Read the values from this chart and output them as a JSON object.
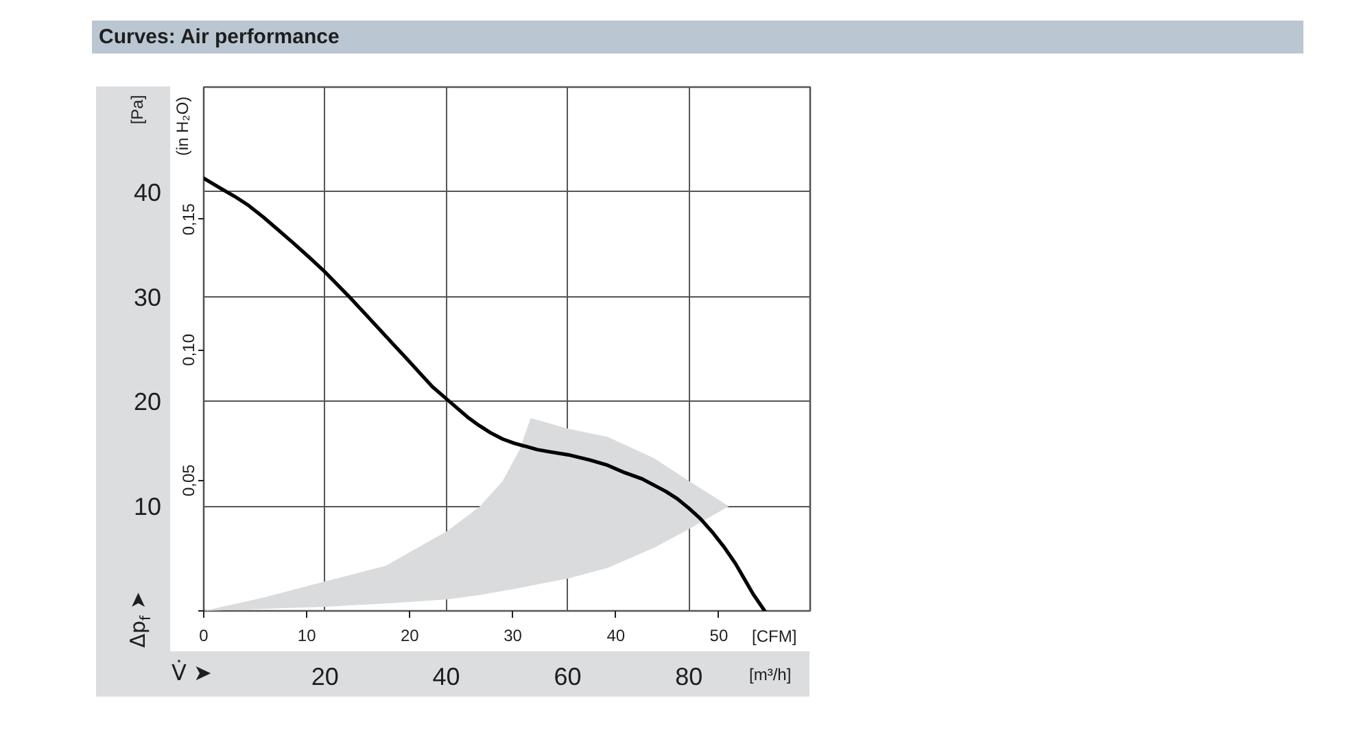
{
  "chart_data": {
    "type": "line",
    "title": "Curves: Air performance",
    "xlabel": "V̇ ➤",
    "ylabel": "Δp$_{f}$ ➤",
    "x2label": "[CFM]",
    "y2label": "(in H₂O)",
    "annotations": [
      "[Pa]",
      "[m³/h]"
    ],
    "xlim": [
      0,
      100
    ],
    "xticks": [
      20,
      40,
      60,
      80
    ],
    "ylim": [
      0,
      50
    ],
    "yticks": [
      10,
      20,
      30,
      40
    ],
    "x2lim": [
      0,
      58.86
    ],
    "x2ticks": [
      0,
      10,
      20,
      30,
      40,
      50
    ],
    "y2lim": [
      0,
      0.2007
    ],
    "y2ticks": [
      {
        "value": 0,
        "label": null
      },
      {
        "value": 0.05,
        "label": "0,05"
      },
      {
        "value": 0.1,
        "label": "0,10"
      },
      {
        "value": 0.15,
        "label": "0,15"
      }
    ],
    "grid": true,
    "series": [
      {
        "type": "area",
        "color": "#dadbdd",
        "x": [
          0,
          10,
          19.9,
          30.0,
          40.1,
          45.4,
          49.3,
          52.1,
          53.9,
          60.1,
          66.6,
          74.2,
          80.0,
          86.6
        ],
        "values": [
          null,
          null,
          null,
          null,
          null,
          null,
          null,
          null,
          null,
          null,
          null,
          null,
          null,
          null
        ],
        "lower": [
          0,
          0.2,
          0.4,
          0.7,
          1.1,
          1.5,
          1.9,
          2.2,
          2.4,
          3.1,
          4.1,
          6.0,
          7.8,
          10.0
        ],
        "upper": [
          0,
          1.3,
          2.8,
          4.3,
          7.6,
          9.9,
          12.4,
          15.4,
          18.4,
          17.4,
          16.6,
          14.6,
          12.4,
          10.0
        ]
      },
      {
        "color": "#000000",
        "x": [
          0,
          2.6,
          5.0,
          7.4,
          9.8,
          12.2,
          14.6,
          17.3,
          19.9,
          22.1,
          24.3,
          26.7,
          29.1,
          31.5,
          33.9,
          35.8,
          37.7,
          40.1,
          43.5,
          45.4,
          47.3,
          49.3,
          51.2,
          53.1,
          55.0,
          56.9,
          60.1,
          63.7,
          66.6,
          69.4,
          72.3,
          76.2,
          78.1,
          80.0,
          81.9,
          83.9,
          85.8,
          87.7,
          89.2,
          90.6,
          92.5
        ],
        "values": [
          41.3,
          40.4,
          39.6,
          38.7,
          37.6,
          36.4,
          35.2,
          33.8,
          32.4,
          31.1,
          29.8,
          28.3,
          26.8,
          25.3,
          23.8,
          22.6,
          21.4,
          20.2,
          18.5,
          17.7,
          17.0,
          16.4,
          16.0,
          15.7,
          15.4,
          15.2,
          14.9,
          14.4,
          13.9,
          13.2,
          12.6,
          11.4,
          10.7,
          9.8,
          8.8,
          7.5,
          6.1,
          4.5,
          3.0,
          1.6,
          0
        ]
      }
    ]
  }
}
